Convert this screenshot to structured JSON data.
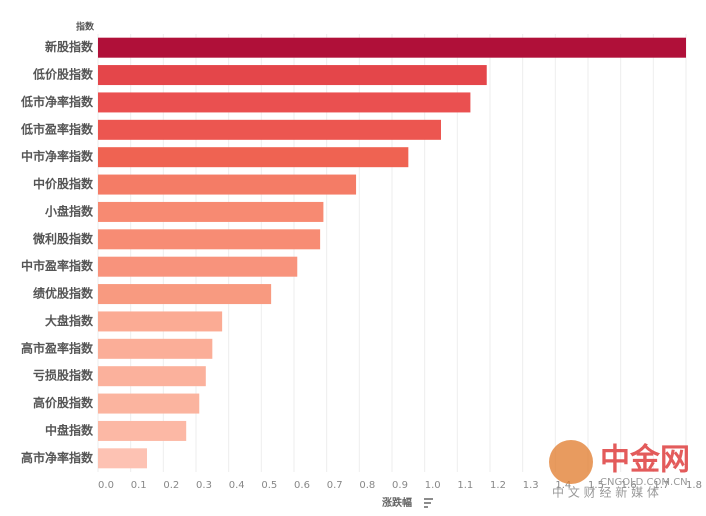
{
  "chart_data": {
    "type": "bar",
    "orientation": "horizontal",
    "y_label": "指数",
    "x_label": "涨跌幅",
    "categories": [
      "新股指数",
      "低价股指数",
      "低市净率指数",
      "低市盈率指数",
      "中市净率指数",
      "中价股指数",
      "小盘指数",
      "微利股指数",
      "中市盈率指数",
      "绩优股指数",
      "大盘指数",
      "高市盈率指数",
      "亏损股指数",
      "高价股指数",
      "中盘指数",
      "高市净率指数"
    ],
    "values": [
      1.8,
      1.19,
      1.14,
      1.05,
      0.95,
      0.79,
      0.69,
      0.68,
      0.61,
      0.53,
      0.38,
      0.35,
      0.33,
      0.31,
      0.27,
      0.15
    ],
    "colors": [
      "#b01039",
      "#e4464a",
      "#ea5050",
      "#ec5650",
      "#ef6352",
      "#f47c66",
      "#f78a72",
      "#f78c74",
      "#f8937c",
      "#f89a80",
      "#fbab94",
      "#fbae98",
      "#fbb19c",
      "#fbb49f",
      "#fcb8a5",
      "#fdc2b3"
    ],
    "xlim": [
      0,
      1.8
    ],
    "xticks": [
      {
        "value": 0,
        "label": "0.0"
      },
      0.1,
      0.2,
      0.3,
      0.4,
      0.5,
      0.6,
      0.7,
      0.8,
      0.9,
      {
        "value": 1,
        "label": "1.0"
      },
      1.1,
      1.2,
      1.3,
      1.4,
      1.5,
      1.6,
      1.7,
      1.8
    ],
    "grid": true
  },
  "watermark": {
    "logo": "中金网",
    "url": "CNGOLD.COM.CN",
    "slogan": "中 文 财 经 新 媒 体"
  }
}
